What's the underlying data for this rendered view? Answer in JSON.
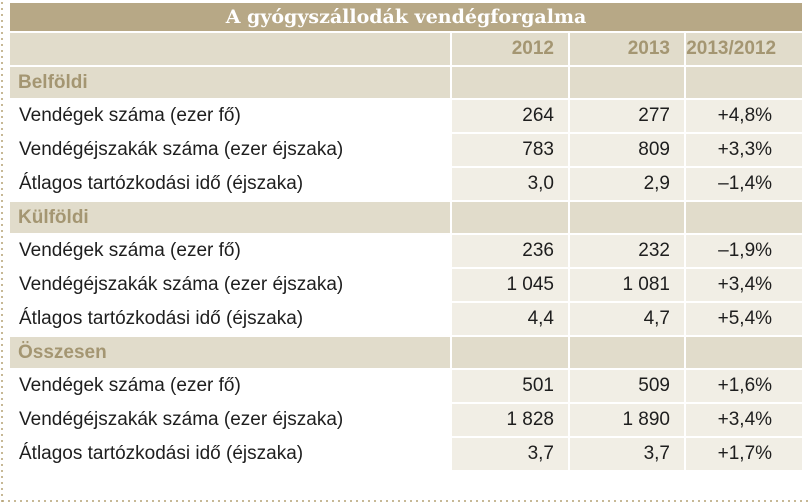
{
  "title": "A gyógyszállodák vendégforgalma",
  "columns": [
    "2012",
    "2013",
    "2013/2012"
  ],
  "sections": [
    {
      "name": "Belföldi",
      "rows": [
        {
          "label": "Vendégek száma (ezer fő)",
          "v2012": "264",
          "v2013": "277",
          "change": "+4,8%"
        },
        {
          "label": "Vendégéjszakák száma (ezer éjszaka)",
          "v2012": "783",
          "v2013": "809",
          "change": "+3,3%"
        },
        {
          "label": "Átlagos tartózkodási idő (éjszaka)",
          "v2012": "3,0",
          "v2013": "2,9",
          "change": "–1,4%"
        }
      ]
    },
    {
      "name": "Külföldi",
      "rows": [
        {
          "label": "Vendégek száma (ezer fő)",
          "v2012": "236",
          "v2013": "232",
          "change": "–1,9%"
        },
        {
          "label": "Vendégéjszakák száma (ezer éjszaka)",
          "v2012": "1 045",
          "v2013": "1 081",
          "change": "+3,4%"
        },
        {
          "label": "Átlagos tartózkodási idő (éjszaka)",
          "v2012": "4,4",
          "v2013": "4,7",
          "change": "+5,4%"
        }
      ]
    },
    {
      "name": "Összesen",
      "rows": [
        {
          "label": "Vendégek száma (ezer fő)",
          "v2012": "501",
          "v2013": "509",
          "change": "+1,6%"
        },
        {
          "label": "Vendégéjszakák száma (ezer éjszaka)",
          "v2012": "1 828",
          "v2013": "1 890",
          "change": "+3,4%"
        },
        {
          "label": "Átlagos tartózkodási idő (éjszaka)",
          "v2012": "3,7",
          "v2013": "3,7",
          "change": "+1,7%"
        }
      ]
    }
  ]
}
